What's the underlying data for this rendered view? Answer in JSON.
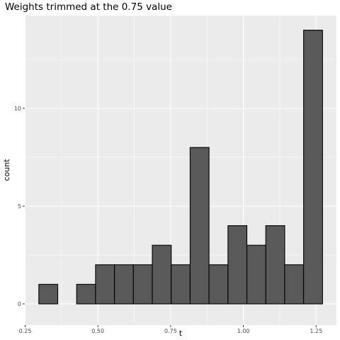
{
  "chart_data": {
    "type": "bar",
    "title": "Weights trimmed at the 0.75 value",
    "xlabel": "t",
    "ylabel": "count",
    "xlim": [
      0.25,
      1.3
    ],
    "ylim": [
      0,
      14
    ],
    "x_ticks": [
      0.25,
      0.5,
      0.75,
      1.0,
      1.25
    ],
    "x_tick_labels": [
      "0.25",
      "0.50",
      "0.75",
      "1.00",
      "1.25"
    ],
    "y_ticks": [
      0,
      5,
      10
    ],
    "y_tick_labels": [
      "0",
      "5",
      "10"
    ],
    "bins": [
      {
        "x0": 0.297,
        "x1": 0.362,
        "count": 1
      },
      {
        "x0": 0.362,
        "x1": 0.427,
        "count": 0
      },
      {
        "x0": 0.427,
        "x1": 0.492,
        "count": 1
      },
      {
        "x0": 0.492,
        "x1": 0.557,
        "count": 2
      },
      {
        "x0": 0.557,
        "x1": 0.622,
        "count": 2
      },
      {
        "x0": 0.622,
        "x1": 0.687,
        "count": 2
      },
      {
        "x0": 0.687,
        "x1": 0.752,
        "count": 3
      },
      {
        "x0": 0.752,
        "x1": 0.817,
        "count": 2
      },
      {
        "x0": 0.817,
        "x1": 0.882,
        "count": 8
      },
      {
        "x0": 0.882,
        "x1": 0.947,
        "count": 2
      },
      {
        "x0": 0.947,
        "x1": 1.012,
        "count": 4
      },
      {
        "x0": 1.012,
        "x1": 1.077,
        "count": 3
      },
      {
        "x0": 1.077,
        "x1": 1.142,
        "count": 4
      },
      {
        "x0": 1.142,
        "x1": 1.207,
        "count": 2
      },
      {
        "x0": 1.207,
        "x1": 1.272,
        "count": 14
      }
    ],
    "grid": true,
    "colors": {
      "bar_fill": "#595959",
      "bar_stroke": "#000000",
      "panel": "#ebebeb",
      "grid": "#ffffff"
    }
  }
}
